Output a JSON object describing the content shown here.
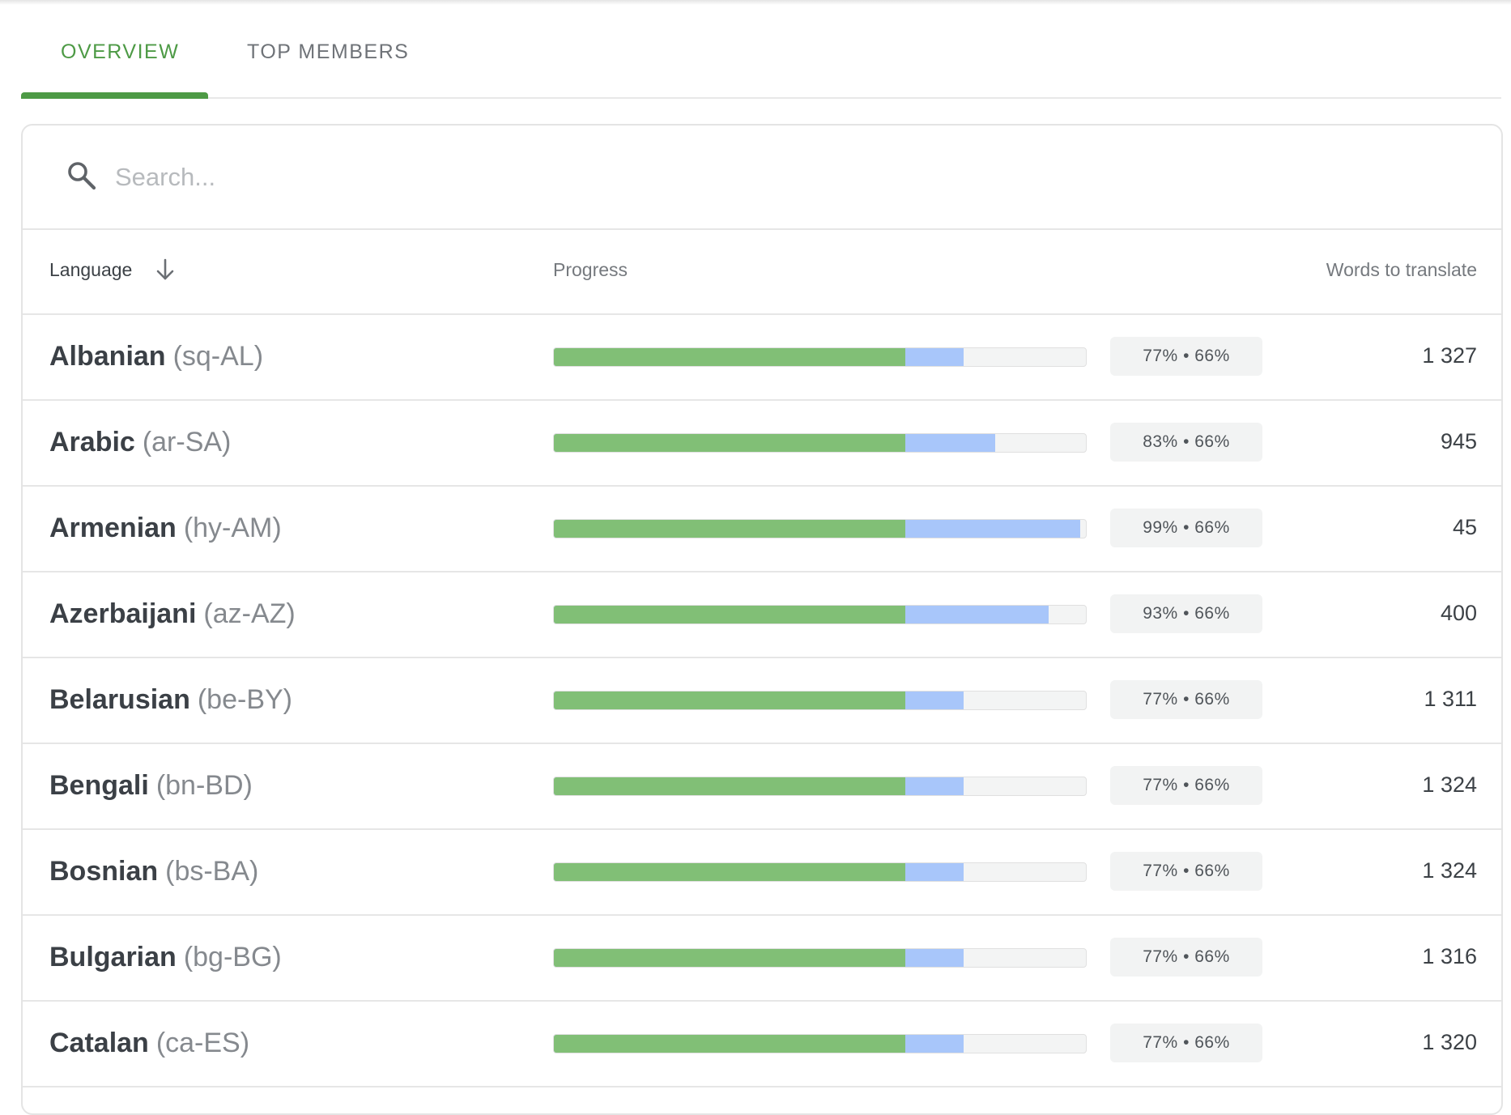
{
  "tabs": {
    "overview": "OVERVIEW",
    "top_members": "TOP MEMBERS"
  },
  "search": {
    "placeholder": "Search...",
    "value": ""
  },
  "table": {
    "headers": {
      "language": "Language",
      "progress": "Progress",
      "words": "Words to translate"
    },
    "rows": [
      {
        "name": "Albanian",
        "code": "(sq-AL)",
        "translated": 77,
        "approved": 66,
        "badge": "77% • 66%",
        "words": "1 327"
      },
      {
        "name": "Arabic",
        "code": "(ar-SA)",
        "translated": 83,
        "approved": 66,
        "badge": "83% • 66%",
        "words": "945"
      },
      {
        "name": "Armenian",
        "code": "(hy-AM)",
        "translated": 99,
        "approved": 66,
        "badge": "99% • 66%",
        "words": "45"
      },
      {
        "name": "Azerbaijani",
        "code": "(az-AZ)",
        "translated": 93,
        "approved": 66,
        "badge": "93% • 66%",
        "words": "400"
      },
      {
        "name": "Belarusian",
        "code": "(be-BY)",
        "translated": 77,
        "approved": 66,
        "badge": "77% • 66%",
        "words": "1 311"
      },
      {
        "name": "Bengali",
        "code": "(bn-BD)",
        "translated": 77,
        "approved": 66,
        "badge": "77% • 66%",
        "words": "1 324"
      },
      {
        "name": "Bosnian",
        "code": "(bs-BA)",
        "translated": 77,
        "approved": 66,
        "badge": "77% • 66%",
        "words": "1 324"
      },
      {
        "name": "Bulgarian",
        "code": "(bg-BG)",
        "translated": 77,
        "approved": 66,
        "badge": "77% • 66%",
        "words": "1 316"
      },
      {
        "name": "Catalan",
        "code": "(ca-ES)",
        "translated": 77,
        "approved": 66,
        "badge": "77% • 66%",
        "words": "1 320"
      }
    ]
  },
  "icons": {
    "search": "search-icon",
    "sort": "arrow-down-icon"
  },
  "colors": {
    "accent": "#4d9a45",
    "approved_bar": "#81bf76",
    "translated_bar": "#a8c6fa",
    "bar_track": "#f3f4f4"
  }
}
